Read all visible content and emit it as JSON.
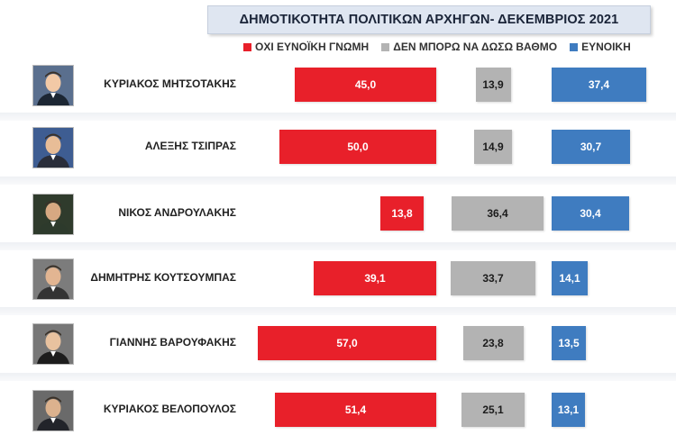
{
  "chart_data": {
    "type": "bar",
    "orientation": "horizontal",
    "title": "ΔΗΜΟΤΙΚΟΤΗΤΑ ΠΟΛΙΤΙΚΩΝ ΑΡΧΗΓΩΝ- ΔΕΚΕΜΒΡΙΟΣ 2021",
    "categories": [
      "ΚΥΡΙΑΚΟΣ ΜΗΤΣΟΤΑΚΗΣ",
      "ΑΛΕΞΗΣ ΤΣΙΠΡΑΣ",
      "ΝΙΚΟΣ ΑΝΔΡΟΥΛΑΚΗΣ",
      "ΔΗΜΗΤΡΗΣ ΚΟΥΤΣΟΥΜΠΑΣ",
      "ΓΙΑΝΝΗΣ ΒΑΡΟΥΦΑΚΗΣ",
      "ΚΥΡΙΑΚΟΣ ΒΕΛΟΠΟΥΛΟΣ"
    ],
    "series": [
      {
        "name": "ΟΧΙ ΕΥΝΟΪΚΗ ΓΝΩΜΗ",
        "color": "#e8202a",
        "values": [
          45.0,
          50.0,
          13.8,
          39.1,
          57.0,
          51.4
        ],
        "labels": [
          "45,0",
          "50,0",
          "13,8",
          "39,1",
          "57,0",
          "51,4"
        ]
      },
      {
        "name": "ΔΕΝ ΜΠΟΡΩ ΝΑ ΔΩΣΩ ΒΑΘΜΟ",
        "color": "#b3b3b3",
        "values": [
          13.9,
          14.9,
          36.4,
          33.7,
          23.8,
          25.1
        ],
        "labels": [
          "13,9",
          "14,9",
          "36,4",
          "33,7",
          "23,8",
          "25,1"
        ]
      },
      {
        "name": "ΕΥΝΟΙΚΗ",
        "color": "#3f7cc0",
        "values": [
          37.4,
          30.7,
          30.4,
          14.1,
          13.5,
          13.1
        ],
        "labels": [
          "37,4",
          "30,7",
          "30,4",
          "14,1",
          "13,5",
          "13,1"
        ]
      }
    ],
    "legend_position": "top",
    "grid": false
  }
}
